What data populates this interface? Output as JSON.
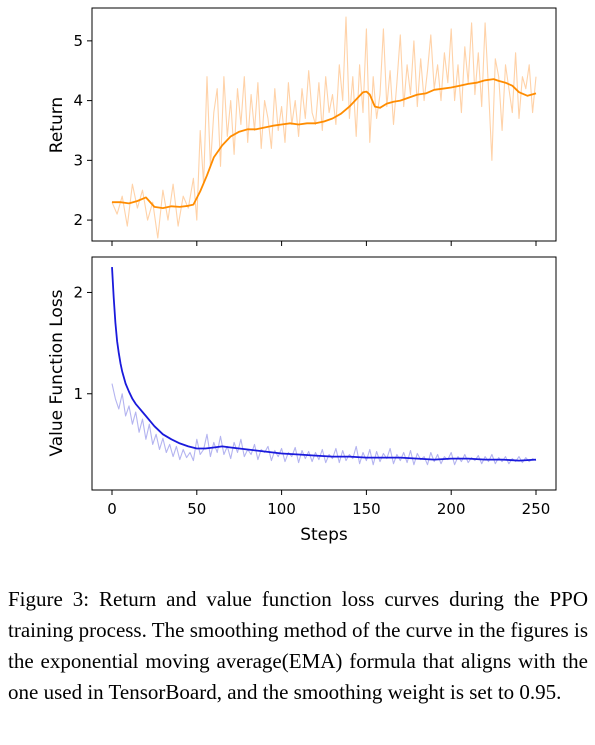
{
  "chart_data": [
    {
      "type": "line",
      "ylabel": "Return",
      "xlim": [
        0,
        250
      ],
      "ylim": [
        1.65,
        5.55
      ],
      "yticks": [
        2,
        3,
        4,
        5
      ],
      "xticks": [
        0,
        50,
        100,
        150,
        200,
        250
      ],
      "show_x_ticklabels": false,
      "grid": false,
      "series": [
        {
          "role": "smoothed",
          "color": "#ff8c00",
          "x": [
            0,
            5,
            10,
            15,
            20,
            25,
            30,
            35,
            40,
            45,
            48,
            52,
            56,
            60,
            65,
            70,
            75,
            80,
            85,
            90,
            95,
            100,
            105,
            110,
            115,
            120,
            125,
            130,
            135,
            140,
            145,
            148,
            150,
            152,
            155,
            158,
            162,
            166,
            170,
            175,
            180,
            185,
            190,
            195,
            200,
            205,
            210,
            215,
            220,
            225,
            228,
            232,
            236,
            240,
            245,
            250
          ],
          "y": [
            2.3,
            2.3,
            2.28,
            2.32,
            2.38,
            2.22,
            2.2,
            2.23,
            2.22,
            2.24,
            2.26,
            2.48,
            2.75,
            3.05,
            3.25,
            3.4,
            3.48,
            3.52,
            3.52,
            3.55,
            3.58,
            3.6,
            3.62,
            3.6,
            3.62,
            3.62,
            3.65,
            3.7,
            3.78,
            3.9,
            4.05,
            4.14,
            4.15,
            4.1,
            3.9,
            3.88,
            3.95,
            3.98,
            4.0,
            4.05,
            4.1,
            4.12,
            4.18,
            4.2,
            4.22,
            4.25,
            4.28,
            4.3,
            4.34,
            4.36,
            4.33,
            4.3,
            4.25,
            4.14,
            4.08,
            4.12
          ]
        },
        {
          "role": "raw",
          "color": "#ffd2a8",
          "x": [
            0,
            3,
            6,
            9,
            12,
            15,
            18,
            21,
            24,
            27,
            30,
            33,
            36,
            39,
            42,
            45,
            48,
            50,
            52,
            54,
            56,
            58,
            60,
            62,
            64,
            66,
            68,
            70,
            72,
            74,
            76,
            78,
            80,
            82,
            84,
            86,
            88,
            90,
            92,
            94,
            96,
            98,
            100,
            102,
            104,
            106,
            108,
            110,
            112,
            114,
            116,
            118,
            120,
            122,
            124,
            126,
            128,
            130,
            132,
            134,
            136,
            138,
            140,
            142,
            144,
            146,
            148,
            150,
            152,
            154,
            156,
            158,
            160,
            162,
            164,
            166,
            168,
            170,
            172,
            174,
            176,
            178,
            180,
            182,
            184,
            186,
            188,
            190,
            192,
            194,
            196,
            198,
            200,
            202,
            204,
            206,
            208,
            210,
            212,
            214,
            216,
            218,
            220,
            222,
            224,
            226,
            228,
            230,
            232,
            234,
            236,
            238,
            240,
            242,
            244,
            246,
            248,
            250
          ],
          "y": [
            2.3,
            2.1,
            2.4,
            1.9,
            2.6,
            2.2,
            2.5,
            2.0,
            2.3,
            1.7,
            2.5,
            2.0,
            2.6,
            1.9,
            2.4,
            2.2,
            2.7,
            2.0,
            3.5,
            2.6,
            4.4,
            2.9,
            3.8,
            4.2,
            2.9,
            4.4,
            3.4,
            4.0,
            3.1,
            4.2,
            3.6,
            4.4,
            3.3,
            4.1,
            3.5,
            4.3,
            3.2,
            4.0,
            3.7,
            3.2,
            4.2,
            3.5,
            3.9,
            3.3,
            4.3,
            3.6,
            4.0,
            3.4,
            4.2,
            3.7,
            4.5,
            3.8,
            3.6,
            4.3,
            3.5,
            4.4,
            3.8,
            4.1,
            3.6,
            4.6,
            4.0,
            5.4,
            3.7,
            4.4,
            3.4,
            4.6,
            3.8,
            5.2,
            3.3,
            4.4,
            3.7,
            4.1,
            5.2,
            3.9,
            4.5,
            3.6,
            4.3,
            5.1,
            3.9,
            4.6,
            4.1,
            5.0,
            3.9,
            4.7,
            4.0,
            4.5,
            5.1,
            4.2,
            4.6,
            4.0,
            4.8,
            4.3,
            5.2,
            4.0,
            4.6,
            3.8,
            4.9,
            4.3,
            5.3,
            4.1,
            4.8,
            3.9,
            5.3,
            4.2,
            3.0,
            4.7,
            4.4,
            3.5,
            4.6,
            4.2,
            3.8,
            4.8,
            3.7,
            4.4,
            4.2,
            4.6,
            3.8,
            4.4
          ]
        }
      ]
    },
    {
      "type": "line",
      "xlabel": "Steps",
      "ylabel": "Value Function Loss",
      "xlim": [
        0,
        250
      ],
      "ylim": [
        0.05,
        2.35
      ],
      "yticks": [
        1,
        2
      ],
      "xticks": [
        0,
        50,
        100,
        150,
        200,
        250
      ],
      "xtick_labels": [
        "0",
        "50",
        "100",
        "150",
        "200",
        "250"
      ],
      "grid": false,
      "series": [
        {
          "role": "smoothed",
          "color": "#1a1adc",
          "x": [
            0,
            1,
            2,
            3,
            4,
            5,
            6,
            8,
            10,
            12,
            14,
            16,
            18,
            20,
            25,
            30,
            35,
            40,
            45,
            50,
            55,
            60,
            65,
            70,
            80,
            90,
            100,
            110,
            120,
            130,
            140,
            150,
            160,
            170,
            180,
            190,
            200,
            210,
            220,
            230,
            240,
            250
          ],
          "y": [
            2.25,
            1.95,
            1.7,
            1.52,
            1.4,
            1.3,
            1.22,
            1.1,
            1.02,
            0.95,
            0.9,
            0.86,
            0.82,
            0.78,
            0.68,
            0.6,
            0.55,
            0.51,
            0.48,
            0.46,
            0.46,
            0.47,
            0.48,
            0.47,
            0.45,
            0.43,
            0.41,
            0.4,
            0.39,
            0.38,
            0.38,
            0.37,
            0.37,
            0.37,
            0.36,
            0.35,
            0.36,
            0.36,
            0.35,
            0.35,
            0.34,
            0.35
          ]
        },
        {
          "role": "raw",
          "color": "#b4b4f0",
          "x": [
            0,
            2,
            4,
            6,
            8,
            10,
            12,
            14,
            16,
            18,
            20,
            22,
            24,
            26,
            28,
            30,
            32,
            34,
            36,
            38,
            40,
            42,
            44,
            46,
            48,
            50,
            52,
            54,
            56,
            58,
            60,
            62,
            64,
            66,
            68,
            70,
            72,
            74,
            76,
            78,
            80,
            82,
            84,
            86,
            88,
            90,
            92,
            94,
            96,
            98,
            100,
            102,
            104,
            106,
            108,
            110,
            112,
            114,
            116,
            118,
            120,
            122,
            124,
            126,
            128,
            130,
            132,
            134,
            136,
            138,
            140,
            142,
            144,
            146,
            148,
            150,
            152,
            154,
            156,
            158,
            160,
            162,
            164,
            166,
            168,
            170,
            172,
            174,
            176,
            178,
            180,
            182,
            184,
            186,
            188,
            190,
            192,
            194,
            196,
            198,
            200,
            202,
            204,
            206,
            208,
            210,
            212,
            214,
            216,
            218,
            220,
            222,
            224,
            226,
            228,
            230,
            232,
            234,
            236,
            238,
            240,
            242,
            244,
            246,
            248,
            250
          ],
          "y": [
            1.1,
            0.95,
            0.85,
            1.0,
            0.78,
            0.88,
            0.7,
            0.82,
            0.62,
            0.75,
            0.55,
            0.7,
            0.5,
            0.6,
            0.45,
            0.56,
            0.42,
            0.5,
            0.38,
            0.48,
            0.35,
            0.45,
            0.37,
            0.42,
            0.34,
            0.55,
            0.4,
            0.45,
            0.6,
            0.38,
            0.52,
            0.42,
            0.58,
            0.4,
            0.48,
            0.36,
            0.52,
            0.42,
            0.55,
            0.38,
            0.45,
            0.4,
            0.5,
            0.35,
            0.45,
            0.42,
            0.48,
            0.34,
            0.44,
            0.38,
            0.46,
            0.33,
            0.42,
            0.38,
            0.47,
            0.32,
            0.44,
            0.36,
            0.43,
            0.33,
            0.42,
            0.35,
            0.45,
            0.32,
            0.4,
            0.36,
            0.46,
            0.32,
            0.44,
            0.34,
            0.4,
            0.36,
            0.48,
            0.31,
            0.42,
            0.34,
            0.45,
            0.3,
            0.43,
            0.33,
            0.41,
            0.36,
            0.46,
            0.31,
            0.4,
            0.34,
            0.42,
            0.32,
            0.44,
            0.3,
            0.41,
            0.35,
            0.38,
            0.3,
            0.42,
            0.33,
            0.4,
            0.31,
            0.38,
            0.35,
            0.42,
            0.3,
            0.38,
            0.33,
            0.4,
            0.32,
            0.37,
            0.34,
            0.39,
            0.31,
            0.38,
            0.33,
            0.4,
            0.31,
            0.37,
            0.33,
            0.38,
            0.31,
            0.36,
            0.33,
            0.38,
            0.32,
            0.37,
            0.33,
            0.36,
            0.34
          ]
        }
      ]
    }
  ],
  "caption": "Figure 3: Return and value function loss curves during the PPO training process.  The smoothing method of the curve in the figures is the exponential moving average(EMA) formula that aligns with the one used in TensorBoard, and the smoothing weight is set to 0.95."
}
